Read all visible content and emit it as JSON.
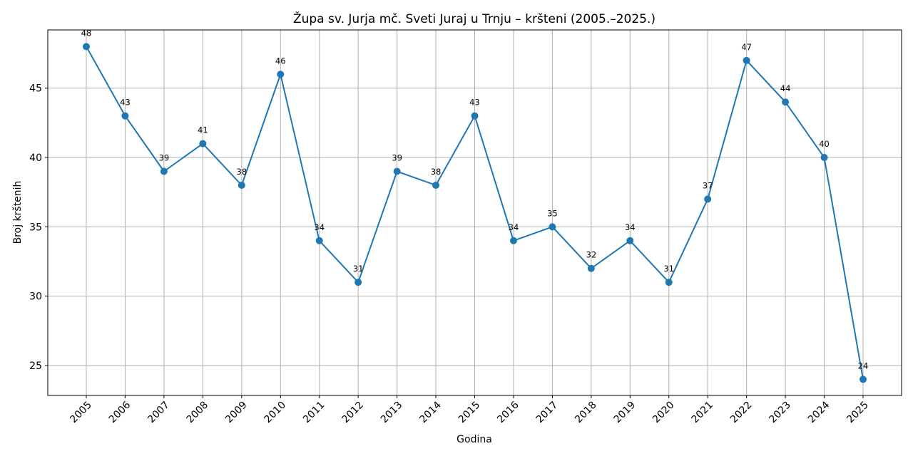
{
  "chart_data": {
    "type": "line",
    "title": "Župa sv. Jurja mč. Sveti Juraj u Trnju – kršteni (2005.–2025.)",
    "xlabel": "Godina",
    "ylabel": "Broj krštenih",
    "categories": [
      "2005",
      "2006",
      "2007",
      "2008",
      "2009",
      "2010",
      "2011",
      "2012",
      "2013",
      "2014",
      "2015",
      "2016",
      "2017",
      "2018",
      "2019",
      "2020",
      "2021",
      "2022",
      "2023",
      "2024",
      "2025"
    ],
    "series": [
      {
        "name": "Kršteni",
        "values": [
          48,
          43,
          39,
          41,
          38,
          46,
          34,
          31,
          39,
          38,
          43,
          34,
          35,
          32,
          34,
          31,
          37,
          47,
          44,
          40,
          24
        ],
        "color": "#1f77b4"
      }
    ],
    "yticks": [
      25,
      30,
      35,
      40,
      45
    ],
    "ylim": [
      22.84,
      49.2
    ],
    "grid": true,
    "legend": null,
    "data_labels": true,
    "x_tick_rotation": 45
  }
}
